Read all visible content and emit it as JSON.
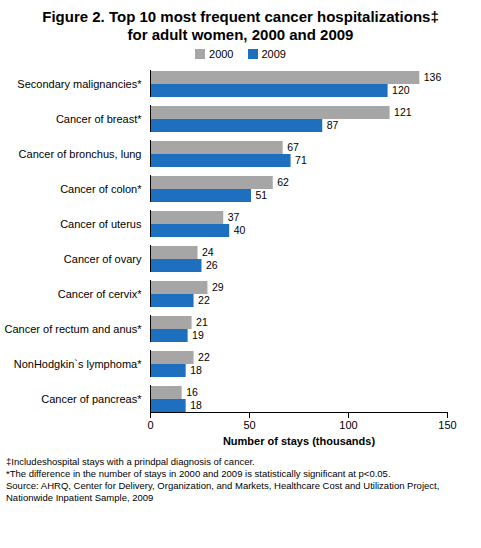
{
  "chart_data": {
    "type": "bar",
    "orientation": "horizontal",
    "title": "Figure 2. Top 10 most frequent cancer hospitalizations‡ for adult women, 2000 and 2009",
    "categories": [
      "Secondary malignancies*",
      "Cancer of breast*",
      "Cancer of bronchus, lung",
      "Cancer of colon*",
      "Cancer of uterus",
      "Cancer of ovary",
      "Cancer of cervix*",
      "Cancer of rectum and anus*",
      "NonHodgkin`s lymphoma*",
      "Cancer of pancreas*"
    ],
    "series": [
      {
        "name": "2000",
        "color": "#a6a6a6",
        "values": [
          136,
          121,
          67,
          62,
          37,
          24,
          29,
          21,
          22,
          16
        ]
      },
      {
        "name": "2009",
        "color": "#1f6fc0",
        "values": [
          120,
          87,
          71,
          51,
          40,
          26,
          22,
          19,
          18,
          18
        ]
      }
    ],
    "xlim": [
      0,
      150
    ],
    "xticks": [
      0,
      50,
      100,
      150
    ],
    "xlabel": "Number of stays (thousands)",
    "data_labels": true,
    "legend": "top",
    "grid": false,
    "notes": [
      "‡Includeshospital stays with a prindpal diagnosis of cancer.",
      "*The difference in the number of stays in 2000 and 2009 is statistically significant at p<0.05.",
      "Source: AHRQ, Center for Delivery, Organization, and Markets, Healthcare Cost and Utilization Project, Nationwide Inpatient Sample, 2009"
    ]
  }
}
